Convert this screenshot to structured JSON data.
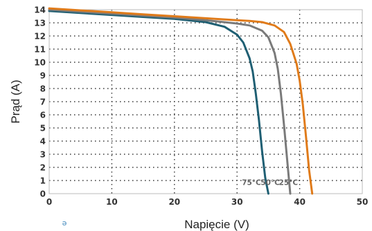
{
  "chart_data": {
    "type": "line",
    "title": "",
    "xlabel": "Napięcie (V)",
    "ylabel": "Prąd (A)",
    "xlim": [
      0,
      50
    ],
    "ylim": [
      0,
      14
    ],
    "xticks": [
      0,
      10,
      20,
      30,
      40,
      50
    ],
    "yticks": [
      0,
      1,
      2,
      3,
      4,
      5,
      6,
      7,
      8,
      9,
      10,
      11,
      12,
      13,
      14
    ],
    "grid": true,
    "series": [
      {
        "name": "75°C",
        "color": "#1f5f73",
        "x": [
          0,
          5,
          10,
          15,
          20,
          25,
          28,
          30,
          31,
          32,
          32.5,
          33,
          33.5,
          34,
          34.5,
          35
        ],
        "y": [
          13.9,
          13.75,
          13.6,
          13.45,
          13.3,
          13.05,
          12.7,
          12.1,
          11.5,
          10.3,
          9.3,
          7.6,
          5.6,
          3.2,
          1.2,
          0
        ]
      },
      {
        "name": "50°C",
        "color": "#7a7a7a",
        "x": [
          0,
          5,
          10,
          15,
          20,
          25,
          30,
          32,
          34,
          35,
          36,
          36.5,
          37,
          37.5,
          38,
          38.5
        ],
        "y": [
          14.0,
          13.85,
          13.7,
          13.55,
          13.4,
          13.2,
          12.95,
          12.8,
          12.4,
          11.9,
          10.7,
          9.5,
          7.6,
          5.2,
          2.6,
          0
        ]
      },
      {
        "name": "25°C",
        "color": "#e07b1a",
        "x": [
          0,
          5,
          10,
          15,
          20,
          25,
          30,
          32,
          34,
          36,
          37.5,
          38.5,
          39.5,
          40,
          40.5,
          41,
          41.5,
          42
        ],
        "y": [
          14.1,
          13.95,
          13.8,
          13.65,
          13.5,
          13.35,
          13.2,
          13.15,
          13.05,
          12.8,
          12.3,
          11.4,
          9.9,
          8.6,
          6.8,
          4.4,
          1.8,
          0
        ]
      }
    ],
    "annotations": [
      {
        "text": "75°C",
        "x": 32.3,
        "y": 0.65
      },
      {
        "text": "50°C",
        "x": 35.3,
        "y": 0.65
      },
      {
        "text": "25°C",
        "x": 38.2,
        "y": 0.65
      }
    ]
  },
  "footer_mark": "ǝ"
}
